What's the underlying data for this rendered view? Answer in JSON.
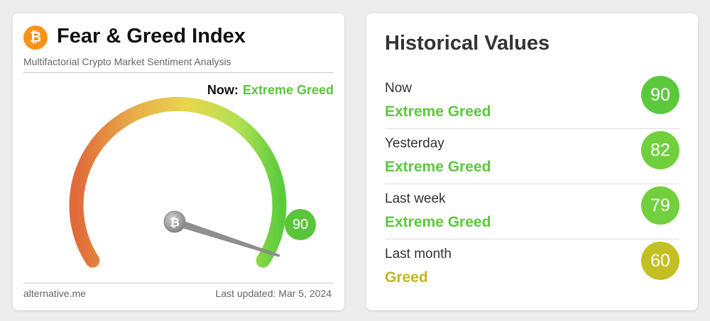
{
  "fear_greed": {
    "title": "Fear & Greed Index",
    "subtitle": "Multifactorial Crypto Market Sentiment Analysis",
    "logo_glyph": "₿",
    "now_label": "Now:",
    "now_value": "Extreme Greed",
    "gauge_value": 90,
    "gauge_score": "90",
    "footer_source": "alternative.me",
    "footer_updated": "Last updated: Mar 5, 2024",
    "colors": {
      "greed": "#5bc43c",
      "fear": "#e06a3a",
      "neutral": "#e6c94a",
      "btc": "#f7931a"
    }
  },
  "historical": {
    "title": "Historical Values",
    "rows": [
      {
        "period": "Now",
        "classification": "Extreme Greed",
        "value": "90",
        "color": "#5cc83c",
        "text_color": "#5cc83c"
      },
      {
        "period": "Yesterday",
        "classification": "Extreme Greed",
        "value": "82",
        "color": "#6fcf3c",
        "text_color": "#5cc83c"
      },
      {
        "period": "Last week",
        "classification": "Extreme Greed",
        "value": "79",
        "color": "#72cf3d",
        "text_color": "#5cc83c"
      },
      {
        "period": "Last month",
        "classification": "Greed",
        "value": "60",
        "color": "#c4bf22",
        "text_color": "#c4b520"
      }
    ]
  }
}
